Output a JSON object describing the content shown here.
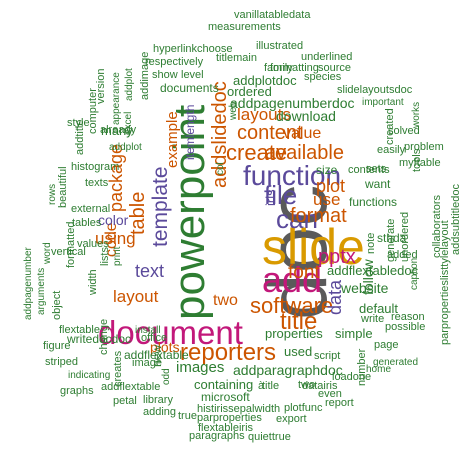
{
  "palette": {
    "gray": "#5a5a5a",
    "green": "#2e7d32",
    "orange": "#cc5500",
    "magenta": "#c2187a",
    "purple": "#5b4a9b",
    "gold": "#d99a00",
    "teal": "#1a8a7a"
  },
  "words": [
    {
      "text": "doc",
      "color": "gray"
    },
    {
      "text": "slide",
      "color": "gold"
    },
    {
      "text": "powerpoint",
      "color": "green"
    },
    {
      "text": "document",
      "color": "magenta"
    },
    {
      "text": "add",
      "color": "magenta"
    },
    {
      "text": "function",
      "color": "purple"
    },
    {
      "text": "reporters",
      "color": "orange"
    },
    {
      "text": "software",
      "color": "orange"
    },
    {
      "text": "file",
      "color": "purple"
    },
    {
      "text": "can",
      "color": "purple"
    },
    {
      "text": "title",
      "color": "orange"
    },
    {
      "text": "create",
      "color": "orange"
    },
    {
      "text": "content",
      "color": "orange"
    },
    {
      "text": "format",
      "color": "orange"
    },
    {
      "text": "available",
      "color": "orange"
    },
    {
      "text": "template",
      "color": "purple"
    },
    {
      "text": "table",
      "color": "orange"
    },
    {
      "text": "addslidedoc",
      "color": "orange"
    },
    {
      "text": "pptx",
      "color": "magenta"
    },
    {
      "text": "layouts",
      "color": "orange"
    },
    {
      "text": "package",
      "color": "orange"
    },
    {
      "text": "text",
      "color": "purple"
    },
    {
      "text": "layout",
      "color": "orange"
    },
    {
      "text": "using",
      "color": "orange"
    },
    {
      "text": "font",
      "color": "orange"
    },
    {
      "text": "plot",
      "color": "orange"
    },
    {
      "text": "plots",
      "color": "orange"
    },
    {
      "text": "images",
      "color": "green"
    },
    {
      "text": "two",
      "color": "orange"
    },
    {
      "text": "code",
      "color": "orange"
    },
    {
      "text": "color",
      "color": "purple"
    },
    {
      "text": "example",
      "color": "orange"
    },
    {
      "text": "use",
      "color": "orange"
    },
    {
      "text": "data",
      "color": "purple"
    },
    {
      "text": "follow",
      "color": "green"
    },
    {
      "text": "value",
      "color": "orange"
    },
    {
      "text": "download",
      "color": "green"
    },
    {
      "text": "website",
      "color": "green"
    },
    {
      "text": "addpagenumberdoc",
      "color": "green"
    },
    {
      "text": "addparagraphdoc",
      "color": "green"
    },
    {
      "text": "addplotdoc",
      "color": "green"
    },
    {
      "text": "addflextabledoc",
      "color": "green"
    },
    {
      "text": "itemlength",
      "color": "purple"
    },
    {
      "text": "used",
      "color": "green"
    },
    {
      "text": "containing",
      "color": "green"
    },
    {
      "text": "properties",
      "color": "green"
    },
    {
      "text": "simple",
      "color": "green"
    },
    {
      "text": "iris",
      "color": "purple"
    },
    {
      "text": "functions",
      "color": "green"
    },
    {
      "text": "ordered",
      "color": "green"
    },
    {
      "text": "documents",
      "color": "green"
    },
    {
      "text": "microsoft",
      "color": "green"
    },
    {
      "text": "many",
      "color": "green"
    },
    {
      "text": "new",
      "color": "green"
    },
    {
      "text": "size",
      "color": "green"
    },
    {
      "text": "contents",
      "color": "green"
    },
    {
      "text": "want",
      "color": "green"
    },
    {
      "text": "sthda",
      "color": "green"
    },
    {
      "text": "note",
      "color": "green"
    },
    {
      "text": "default",
      "color": "green"
    },
    {
      "text": "addflextable",
      "color": "green"
    },
    {
      "text": "vanillatabledata",
      "color": "green"
    },
    {
      "text": "measurements",
      "color": "green"
    },
    {
      "text": "illustrated",
      "color": "green"
    },
    {
      "text": "hyperlink",
      "color": "green"
    },
    {
      "text": "choose",
      "color": "green"
    },
    {
      "text": "titlemain",
      "color": "green"
    },
    {
      "text": "underlined",
      "color": "green"
    },
    {
      "text": "family",
      "color": "green"
    },
    {
      "text": "formatting",
      "color": "green"
    },
    {
      "text": "source",
      "color": "green"
    },
    {
      "text": "respectively",
      "color": "green"
    },
    {
      "text": "show",
      "color": "green"
    },
    {
      "text": "level",
      "color": "green"
    },
    {
      "text": "species",
      "color": "green"
    },
    {
      "text": "slidelayoutsdoc",
      "color": "green"
    },
    {
      "text": "important",
      "color": "green"
    },
    {
      "text": "addimage",
      "color": "green"
    },
    {
      "text": "addplot",
      "color": "green"
    },
    {
      "text": "version",
      "color": "green"
    },
    {
      "text": "already",
      "color": "green"
    },
    {
      "text": "appearance",
      "color": "green"
    },
    {
      "text": "style",
      "color": "green"
    },
    {
      "text": "computer",
      "color": "green"
    },
    {
      "text": "addtitle",
      "color": "green"
    },
    {
      "text": "histogram",
      "color": "green"
    },
    {
      "text": "texts",
      "color": "green"
    },
    {
      "text": "rows",
      "color": "green"
    },
    {
      "text": "beautiful",
      "color": "green"
    },
    {
      "text": "external",
      "color": "green"
    },
    {
      "text": "tables",
      "color": "green"
    },
    {
      "text": "values",
      "color": "green"
    },
    {
      "text": "vertical",
      "color": "green"
    },
    {
      "text": "word",
      "color": "green"
    },
    {
      "text": "addpagenumber",
      "color": "green"
    },
    {
      "text": "arguments",
      "color": "green"
    },
    {
      "text": "formatted",
      "color": "green"
    },
    {
      "text": "width",
      "color": "green"
    },
    {
      "text": "lists",
      "color": "green"
    },
    {
      "text": "flextable",
      "color": "green"
    },
    {
      "text": "object",
      "color": "green"
    },
    {
      "text": "writedocdoc",
      "color": "green"
    },
    {
      "text": "office",
      "color": "green"
    },
    {
      "text": "install",
      "color": "green"
    },
    {
      "text": "figure",
      "color": "green"
    },
    {
      "text": "striped",
      "color": "green"
    },
    {
      "text": "change",
      "color": "green"
    },
    {
      "text": "graphs",
      "color": "green"
    },
    {
      "text": "indicating",
      "color": "green"
    },
    {
      "text": "creates",
      "color": "green"
    },
    {
      "text": "image",
      "color": "green"
    },
    {
      "text": "addflextable",
      "color": "green"
    },
    {
      "text": "petal",
      "color": "green"
    },
    {
      "text": "library",
      "color": "green"
    },
    {
      "text": "adding",
      "color": "green"
    },
    {
      "text": "histirissepalwidth",
      "color": "green"
    },
    {
      "text": "true",
      "color": "green"
    },
    {
      "text": "parproperties",
      "color": "green"
    },
    {
      "text": "flextableiris",
      "color": "green"
    },
    {
      "text": "paragraphs",
      "color": "green"
    },
    {
      "text": "quiettrue",
      "color": "green"
    },
    {
      "text": "export",
      "color": "green"
    },
    {
      "text": "plotfunc",
      "color": "green"
    },
    {
      "text": "datairis",
      "color": "green"
    },
    {
      "text": "report",
      "color": "green"
    },
    {
      "text": "even",
      "color": "green"
    },
    {
      "text": "loadone",
      "color": "green"
    },
    {
      "text": "home",
      "color": "green"
    },
    {
      "text": "number",
      "color": "green"
    },
    {
      "text": "generated",
      "color": "green"
    },
    {
      "text": "page",
      "color": "green"
    },
    {
      "text": "script",
      "color": "green"
    },
    {
      "text": "possible",
      "color": "green"
    },
    {
      "text": "write",
      "color": "green"
    },
    {
      "text": "reason",
      "color": "green"
    },
    {
      "text": "unordered",
      "color": "green"
    },
    {
      "text": "generate",
      "color": "green"
    },
    {
      "text": "added",
      "color": "green"
    },
    {
      "text": "caption",
      "color": "green"
    },
    {
      "text": "collaborators",
      "color": "green"
    },
    {
      "text": "addsubtitledoc",
      "color": "green"
    },
    {
      "text": "parpropertieslisttylelayout",
      "color": "green"
    },
    {
      "text": "myftable",
      "color": "green"
    },
    {
      "text": "problem",
      "color": "green"
    },
    {
      "text": "solved",
      "color": "green"
    },
    {
      "text": "works",
      "color": "green"
    },
    {
      "text": "easily",
      "color": "green"
    },
    {
      "text": "tools",
      "color": "green"
    },
    {
      "text": "created",
      "color": "green"
    },
    {
      "text": "sets",
      "color": "green"
    },
    {
      "text": "col",
      "color": "green"
    },
    {
      "text": "web",
      "color": "green"
    },
    {
      "text": "excel",
      "color": "green"
    },
    {
      "text": "addplot",
      "color": "green"
    },
    {
      "text": "print",
      "color": "green"
    },
    {
      "text": "odd",
      "color": "green"
    },
    {
      "text": "à",
      "color": "green"
    },
    {
      "text": "title",
      "color": "green"
    },
    {
      "text": "two",
      "color": "green"
    }
  ]
}
